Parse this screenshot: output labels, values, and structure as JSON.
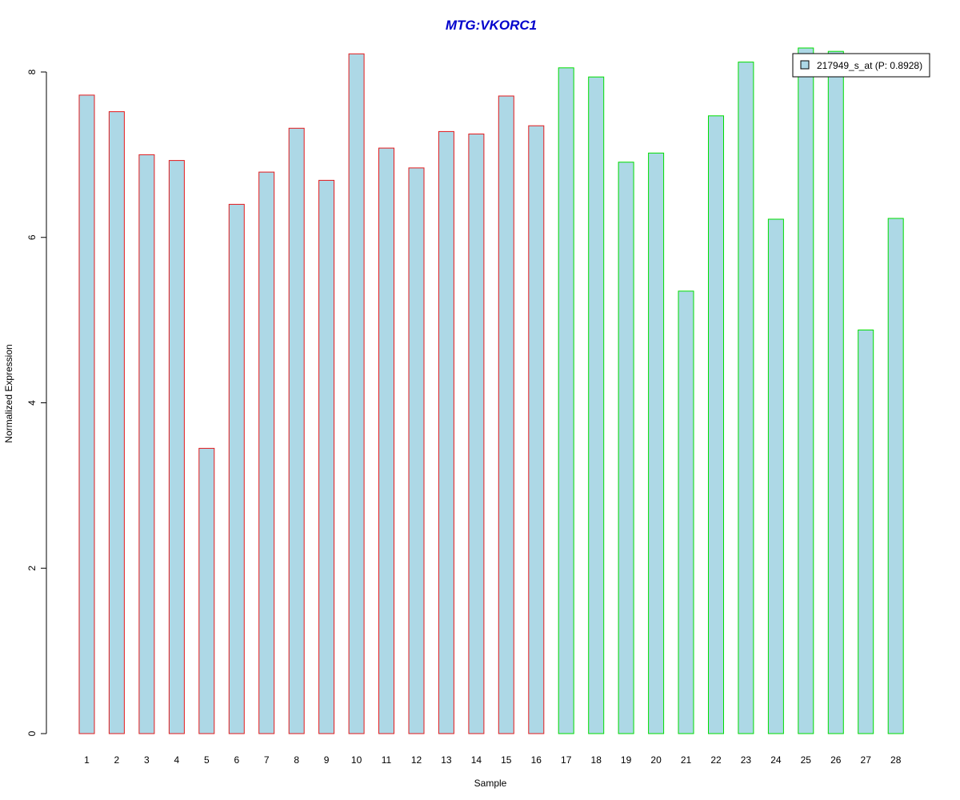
{
  "chart_data": {
    "type": "bar",
    "title": "MTG:VKORC1",
    "xlabel": "Sample",
    "ylabel": "Normalized Expression",
    "ylim": [
      0,
      8.2
    ],
    "yticks": [
      "0",
      "2",
      "4",
      "6",
      "8"
    ],
    "categories": [
      "1",
      "2",
      "3",
      "4",
      "5",
      "6",
      "7",
      "8",
      "9",
      "10",
      "11",
      "12",
      "13",
      "14",
      "15",
      "16",
      "17",
      "18",
      "19",
      "20",
      "21",
      "22",
      "23",
      "24",
      "25",
      "26",
      "27",
      "28"
    ],
    "values": [
      7.72,
      7.52,
      7.0,
      6.93,
      3.45,
      6.4,
      6.79,
      7.32,
      6.69,
      8.22,
      7.08,
      6.84,
      7.28,
      7.25,
      7.71,
      7.35,
      8.05,
      7.94,
      6.91,
      7.02,
      5.35,
      7.47,
      8.12,
      6.22,
      8.29,
      8.25,
      4.88,
      6.23
    ],
    "groups": [
      1,
      1,
      1,
      1,
      1,
      1,
      1,
      1,
      1,
      1,
      1,
      1,
      1,
      1,
      1,
      1,
      2,
      2,
      2,
      2,
      2,
      2,
      2,
      2,
      2,
      2,
      2,
      2
    ],
    "group_colors": {
      "1": "#e31a1c",
      "2": "#00dd00"
    },
    "bar_fill": "#add8e6",
    "title_color": "#0000cc",
    "legend": {
      "label": "217949_s_at (P: 0.8928)",
      "position": "top-right",
      "fill": "#add8e6"
    },
    "grid": false
  }
}
